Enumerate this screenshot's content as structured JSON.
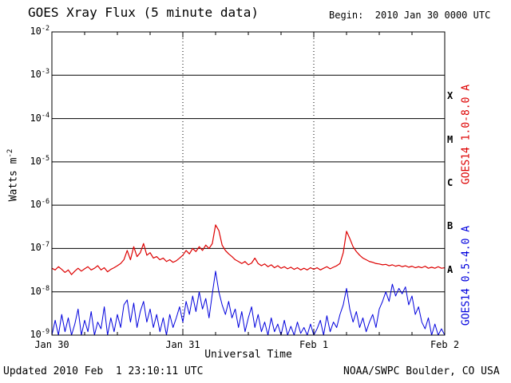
{
  "title": "GOES Xray Flux (5 minute data)",
  "begin_label": "Begin:  2010 Jan 30 0000 UTC",
  "axes": {
    "xlabel": "Universal Time",
    "ylabel_text": "Watts m",
    "ylabel_sup": "-2"
  },
  "series_labels": {
    "long": "GOES14 1.0-8.0 A",
    "short": "GOES14 0.5-4.0 A"
  },
  "footer": {
    "updated": "Updated 2010 Feb  1 23:10:11 UTC",
    "credit": "NOAA/SWPC Boulder, CO USA"
  },
  "colors": {
    "long": "#dd0000",
    "short": "#0000dd",
    "axis": "#000000",
    "background": "#ffffff"
  },
  "chart_data": {
    "type": "line",
    "title": "GOES Xray Flux (5 minute data)",
    "begin": "2010 Jan 30 0000 UTC",
    "xlabel": "Universal Time",
    "ylabel": "Watts m^-2",
    "y_scale": "log",
    "ylim": [
      1e-09,
      0.01
    ],
    "x_range": [
      0,
      3
    ],
    "x_unit": "days since 2010 Jan 30 0000 UTC",
    "x_step": 0.025,
    "x_ticks": [
      "Jan 30",
      "Jan 31",
      "Feb 1",
      "Feb 2"
    ],
    "y_tick_base": "10",
    "y_tick_exponents": [
      -2,
      -3,
      -4,
      -5,
      -6,
      -7,
      -8,
      -9
    ],
    "flare_class_letters": [
      "X",
      "M",
      "C",
      "B",
      "A"
    ],
    "grid": "horizontal solid line each decade; vertical dotted lines at day boundaries",
    "legend_position": "right margin, rotated 90deg",
    "series": [
      {
        "name": "GOES14 1.0-8.0 A",
        "color": "#dd0000",
        "width": 1.2,
        "values": [
          3.5e-08,
          3.2e-08,
          3.8e-08,
          3.3e-08,
          2.8e-08,
          3.2e-08,
          2.5e-08,
          3e-08,
          3.5e-08,
          3e-08,
          3.4e-08,
          3.8e-08,
          3.2e-08,
          3.5e-08,
          4e-08,
          3.2e-08,
          3.6e-08,
          2.9e-08,
          3.3e-08,
          3.6e-08,
          4e-08,
          4.5e-08,
          5.5e-08,
          9e-08,
          5.5e-08,
          1.1e-07,
          6.5e-08,
          8e-08,
          1.3e-07,
          7e-08,
          8e-08,
          6e-08,
          6.5e-08,
          5.5e-08,
          6e-08,
          5e-08,
          5.5e-08,
          4.8e-08,
          5.2e-08,
          6e-08,
          7e-08,
          9e-08,
          7.5e-08,
          1e-07,
          8.5e-08,
          1.1e-07,
          9e-08,
          1.2e-07,
          1e-07,
          1.3e-07,
          3.5e-07,
          2.6e-07,
          1.2e-07,
          9e-08,
          7.5e-08,
          6.5e-08,
          5.5e-08,
          5e-08,
          4.5e-08,
          5e-08,
          4.2e-08,
          4.6e-08,
          6e-08,
          4.5e-08,
          4e-08,
          4.4e-08,
          3.8e-08,
          4.2e-08,
          3.6e-08,
          4e-08,
          3.5e-08,
          3.8e-08,
          3.4e-08,
          3.7e-08,
          3.3e-08,
          3.6e-08,
          3.2e-08,
          3.5e-08,
          3.2e-08,
          3.6e-08,
          3.3e-08,
          3.6e-08,
          3.2e-08,
          3.5e-08,
          3.8e-08,
          3.4e-08,
          3.7e-08,
          4e-08,
          4.5e-08,
          8e-08,
          2.5e-07,
          1.7e-07,
          1.1e-07,
          8.5e-08,
          7e-08,
          6e-08,
          5.5e-08,
          5e-08,
          4.8e-08,
          4.5e-08,
          4.4e-08,
          4.2e-08,
          4.3e-08,
          4e-08,
          4.2e-08,
          3.9e-08,
          4.1e-08,
          3.8e-08,
          4e-08,
          3.7e-08,
          3.9e-08,
          3.6e-08,
          3.8e-08,
          3.6e-08,
          3.9e-08,
          3.5e-08,
          3.7e-08,
          3.5e-08,
          3.8e-08,
          3.5e-08,
          3.6e-08
        ]
      },
      {
        "name": "GOES14 0.5-4.0 A",
        "color": "#0000dd",
        "width": 1,
        "values": [
          1e-09,
          2.2e-09,
          1e-09,
          3e-09,
          1.2e-09,
          2.5e-09,
          1e-09,
          1.8e-09,
          4e-09,
          1e-09,
          2.2e-09,
          1.2e-09,
          3.5e-09,
          1e-09,
          2e-09,
          1.4e-09,
          4.5e-09,
          1e-09,
          2.5e-09,
          1.2e-09,
          3e-09,
          1.5e-09,
          5e-09,
          6.5e-09,
          2e-09,
          5.5e-09,
          1.5e-09,
          3.5e-09,
          6e-09,
          2e-09,
          4e-09,
          1.5e-09,
          3e-09,
          1.2e-09,
          2.5e-09,
          1e-09,
          3e-09,
          1.5e-09,
          2.5e-09,
          4.5e-09,
          2e-09,
          6e-09,
          3e-09,
          8e-09,
          3.5e-09,
          1e-08,
          4e-09,
          7e-09,
          2.5e-09,
          9e-09,
          3e-08,
          1e-08,
          5e-09,
          3e-09,
          6e-09,
          2.5e-09,
          4e-09,
          1.5e-09,
          3.5e-09,
          1.2e-09,
          2.5e-09,
          4.5e-09,
          1.5e-09,
          3e-09,
          1.2e-09,
          2e-09,
          1e-09,
          2.5e-09,
          1.2e-09,
          1.8e-09,
          1e-09,
          2.2e-09,
          1e-09,
          1.6e-09,
          1e-09,
          2e-09,
          1.1e-09,
          1.5e-09,
          1e-09,
          1.8e-09,
          1e-09,
          1.4e-09,
          2.2e-09,
          1e-09,
          2.8e-09,
          1.2e-09,
          2e-09,
          1.5e-09,
          3e-09,
          5e-09,
          1.2e-08,
          4e-09,
          2e-09,
          3.5e-09,
          1.5e-09,
          2.5e-09,
          1.2e-09,
          2e-09,
          3e-09,
          1.5e-09,
          4e-09,
          6e-09,
          1e-08,
          6e-09,
          1.5e-08,
          8e-09,
          1.2e-08,
          9e-09,
          1.3e-08,
          5e-09,
          8e-09,
          3e-09,
          4.5e-09,
          2e-09,
          1.4e-09,
          2.5e-09,
          1e-09,
          1.8e-09,
          1e-09,
          1.4e-09,
          1e-09
        ]
      }
    ]
  }
}
